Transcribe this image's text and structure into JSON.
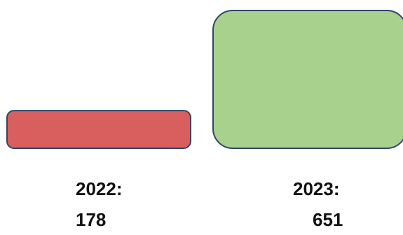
{
  "chart_data": {
    "type": "bar",
    "categories": [
      "2022",
      "2023"
    ],
    "values": [
      178,
      651
    ],
    "labels": [
      {
        "year": "2022:",
        "value": "178"
      },
      {
        "year": "2023:",
        "value": "651"
      }
    ],
    "colors": {
      "2022": "#d95f5f",
      "2023": "#a9d18e",
      "outline": "#2f4668"
    },
    "title": "",
    "xlabel": "",
    "ylabel": "",
    "grid": false,
    "legend": "none"
  }
}
